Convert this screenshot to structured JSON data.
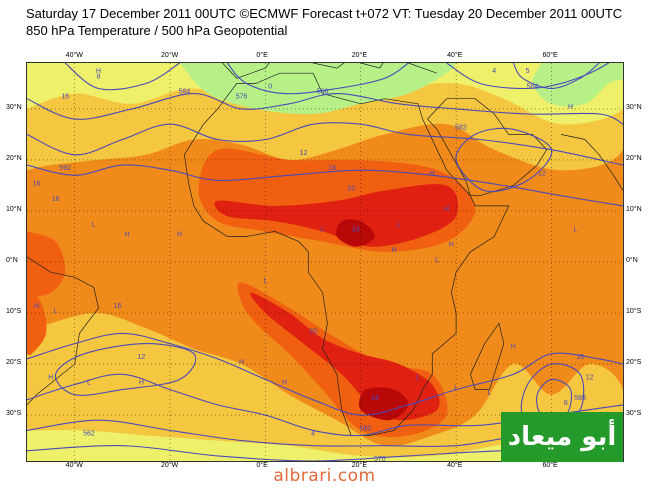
{
  "header": {
    "line1": "Saturday 17 December 2011 00UTC ©ECMWF Forecast t+072 VT: Tuesday 20 December 2011 00UTC",
    "line2": "850 hPa Temperature / 500 hPa Geopotential"
  },
  "map": {
    "lon_labels": [
      "40°W",
      "20°W",
      "0°E",
      "20°E",
      "40°E",
      "60°E"
    ],
    "lat_labels": [
      "30°N",
      "20°N",
      "10°N",
      "0°N",
      "10°S",
      "20°S",
      "30°S"
    ],
    "colors": {
      "cold": "#b8f088",
      "cool": "#eef06a",
      "mild": "#f5c640",
      "warm": "#f08a1a",
      "hot": "#f06010",
      "very_hot": "#e02010",
      "extreme": "#b80808",
      "contour": "#4a4ab8",
      "land_outline": "#222222"
    },
    "contour_labels": [
      {
        "text": "16",
        "lon": -42,
        "lat": 32
      },
      {
        "text": "8",
        "lon": -35,
        "lat": 36
      },
      {
        "text": "584",
        "lon": -17,
        "lat": 33
      },
      {
        "text": "576",
        "lon": -5,
        "lat": 32
      },
      {
        "text": "0",
        "lon": 1,
        "lat": 34
      },
      {
        "text": "568",
        "lon": 12,
        "lat": 33
      },
      {
        "text": "4",
        "lon": 48,
        "lat": 37
      },
      {
        "text": "5",
        "lon": 55,
        "lat": 37
      },
      {
        "text": "584",
        "lon": 56,
        "lat": 34
      },
      {
        "text": "582",
        "lon": 41,
        "lat": 26
      },
      {
        "text": "12",
        "lon": 8,
        "lat": 21
      },
      {
        "text": "16",
        "lon": 14,
        "lat": 18
      },
      {
        "text": "20",
        "lon": 18,
        "lat": 14
      },
      {
        "text": "592",
        "lon": -42,
        "lat": 18
      },
      {
        "text": "16",
        "lon": -48,
        "lat": 15
      },
      {
        "text": "16",
        "lon": -44,
        "lat": 12
      },
      {
        "text": "12",
        "lon": 58,
        "lat": 17
      },
      {
        "text": "24",
        "lon": 19,
        "lat": 6
      },
      {
        "text": "16",
        "lon": -31,
        "lat": -9
      },
      {
        "text": "20",
        "lon": 10,
        "lat": -14
      },
      {
        "text": "12",
        "lon": -26,
        "lat": -19
      },
      {
        "text": "24",
        "lon": 23,
        "lat": -27
      },
      {
        "text": "582",
        "lon": 21,
        "lat": -33
      },
      {
        "text": "8",
        "lon": 63,
        "lat": -28
      },
      {
        "text": "588",
        "lon": 66,
        "lat": -27
      },
      {
        "text": "12",
        "lon": 68,
        "lat": -23
      },
      {
        "text": "16",
        "lon": 66,
        "lat": -19
      },
      {
        "text": "562",
        "lon": -37,
        "lat": -34
      },
      {
        "text": "4",
        "lon": 10,
        "lat": -34
      },
      {
        "text": "570",
        "lon": 24,
        "lat": -39
      }
    ],
    "pressure_marks": [
      {
        "text": "H",
        "lon": -35,
        "lat": 37
      },
      {
        "text": "H",
        "lon": 64,
        "lat": 30
      },
      {
        "text": "H",
        "lon": 35,
        "lat": 17
      },
      {
        "text": "L",
        "lon": 28,
        "lat": 7
      },
      {
        "text": "H",
        "lon": 38,
        "lat": 10
      },
      {
        "text": "L",
        "lon": -36,
        "lat": 7
      },
      {
        "text": "H",
        "lon": -29,
        "lat": 5
      },
      {
        "text": "H",
        "lon": -18,
        "lat": 5
      },
      {
        "text": "L",
        "lon": 12,
        "lat": 6
      },
      {
        "text": "H",
        "lon": 27,
        "lat": 2
      },
      {
        "text": "L",
        "lon": 0,
        "lat": -4
      },
      {
        "text": "L",
        "lon": 36,
        "lat": 0
      },
      {
        "text": "H",
        "lon": 39,
        "lat": 3
      },
      {
        "text": "L",
        "lon": 65,
        "lat": 6
      },
      {
        "text": "L",
        "lon": -44,
        "lat": -10
      },
      {
        "text": "H",
        "lon": -48,
        "lat": -9
      },
      {
        "text": "L",
        "lon": -37,
        "lat": -24
      },
      {
        "text": "H",
        "lon": -45,
        "lat": -23
      },
      {
        "text": "H",
        "lon": -26,
        "lat": -24
      },
      {
        "text": "H",
        "lon": -5,
        "lat": -20
      },
      {
        "text": "H",
        "lon": 4,
        "lat": -24
      },
      {
        "text": "L",
        "lon": 40,
        "lat": -25
      },
      {
        "text": "L",
        "lon": 47,
        "lat": -26
      },
      {
        "text": "L",
        "lon": 57,
        "lat": -31
      },
      {
        "text": "H",
        "lon": 52,
        "lat": -17
      },
      {
        "text": "L",
        "lon": 32,
        "lat": -23
      }
    ]
  },
  "watermark": {
    "text": "أبو ميعاد"
  },
  "footer": {
    "site": "albrari.com"
  }
}
